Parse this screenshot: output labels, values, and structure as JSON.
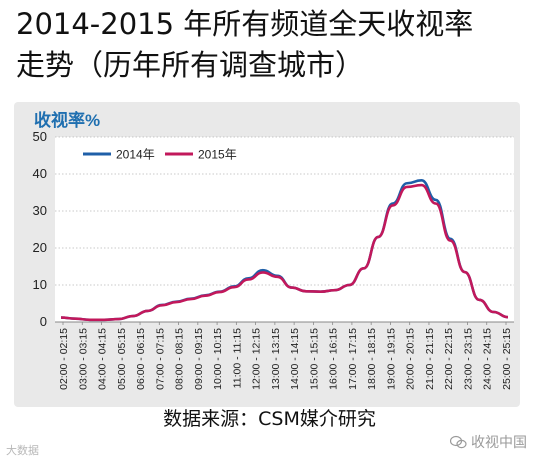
{
  "title_line1": "2014-2015 年所有频道全天收视率",
  "title_line2": "走势（历年所有调查城市）",
  "source": "数据来源：CSM媒介研究",
  "watermark_left": "大数据",
  "watermark_right": "收视中国",
  "chart_data": {
    "type": "line",
    "ylabel": "收视率%",
    "xlabel": "",
    "ylim": [
      0,
      50
    ],
    "yticks": [
      0,
      10,
      20,
      30,
      40,
      50
    ],
    "grid": true,
    "legend_position": "top-left",
    "x": [
      "02:00 - 02:15",
      "02:45",
      "03:30",
      "04:15",
      "05:00",
      "05:45",
      "06:30",
      "07:15",
      "08:00",
      "08:45",
      "09:30",
      "10:15",
      "11:00",
      "11:45",
      "12:30",
      "13:15",
      "14:00",
      "14:45",
      "15:30",
      "16:15",
      "17:00",
      "17:45",
      "18:30",
      "19:15",
      "20:00",
      "20:45",
      "21:30",
      "22:15",
      "23:00",
      "23:45",
      "24:30",
      "25:15"
    ],
    "xticklabels": [
      "02:00 - 02:15",
      "03:00 - 03:15",
      "04:00 - 04:15",
      "05:00 - 05:15",
      "06:00 - 06:15",
      "07:00 - 07:15",
      "08:00 - 08:15",
      "09:00 - 09:15",
      "10:00 - 10:15",
      "11:00 - 11:15",
      "12:00 - 12:15",
      "13:00 - 13:15",
      "14:00 - 14:15",
      "15:00 - 15:15",
      "16:00 - 16:15",
      "17:00 - 17:15",
      "18:00 - 18:15",
      "19:00 - 19:15",
      "20:00 - 20:15",
      "21:00 - 21:15",
      "22:00 - 22:15",
      "23:00 - 23:15",
      "24:00 - 24:15",
      "25:00 - 25:15"
    ],
    "series": [
      {
        "name": "2014年",
        "color": "#1f5fa8",
        "values": [
          1.2,
          0.9,
          0.6,
          0.6,
          0.8,
          1.6,
          3.0,
          4.6,
          5.5,
          6.3,
          7.2,
          8.2,
          9.6,
          11.8,
          14.0,
          12.5,
          9.3,
          8.3,
          8.2,
          8.6,
          10.0,
          14.5,
          23.0,
          32.0,
          37.5,
          38.3,
          33.0,
          22.5,
          13.5,
          6.0,
          2.7,
          1.3
        ]
      },
      {
        "name": "2015年",
        "color": "#c2185b",
        "values": [
          1.2,
          0.9,
          0.6,
          0.6,
          0.8,
          1.6,
          3.0,
          4.5,
          5.4,
          6.2,
          7.1,
          8.1,
          9.4,
          11.5,
          13.4,
          12.2,
          9.3,
          8.3,
          8.2,
          8.6,
          10.0,
          14.5,
          23.0,
          31.5,
          36.5,
          37.0,
          32.0,
          22.0,
          13.5,
          6.0,
          2.7,
          1.3
        ]
      }
    ]
  }
}
